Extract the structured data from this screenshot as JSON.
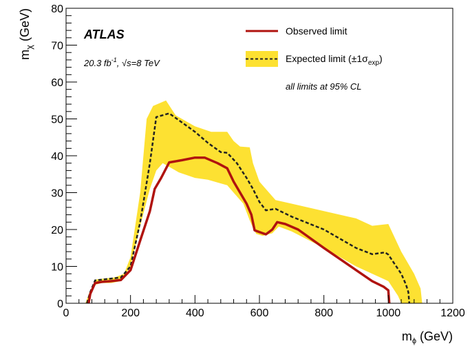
{
  "chart_data": {
    "type": "area",
    "xlabel_main": "m",
    "xlabel_sub": "ϕ",
    "xlabel_unit": " (GeV)",
    "ylabel_main": "m",
    "ylabel_sub": "χ",
    "ylabel_unit": " (GeV)",
    "xlim": [
      0,
      1200
    ],
    "ylim": [
      0,
      80
    ],
    "x_ticks": [
      0,
      200,
      400,
      600,
      800,
      1000,
      1200
    ],
    "y_ticks": [
      0,
      10,
      20,
      30,
      40,
      50,
      60,
      70,
      80
    ],
    "experiment": "ATLAS",
    "lumi_text": {
      "prefix": "20.3 fb",
      "sup": "-1",
      "mid": ", ",
      "sqrt": "√s",
      "suffix": "=8 TeV"
    },
    "note": "all limits at 95% CL",
    "legend_position": "top-right",
    "series": [
      {
        "name": "Observed limit",
        "style": "solid",
        "color": "#b0130f",
        "points": [
          [
            70,
            0
          ],
          [
            75,
            2.5
          ],
          [
            90,
            5.5
          ],
          [
            110,
            5.8
          ],
          [
            140,
            6
          ],
          [
            170,
            6.3
          ],
          [
            200,
            9
          ],
          [
            230,
            17
          ],
          [
            260,
            25
          ],
          [
            275,
            31
          ],
          [
            295,
            34
          ],
          [
            320,
            38.2
          ],
          [
            360,
            38.8
          ],
          [
            400,
            39.5
          ],
          [
            430,
            39.5
          ],
          [
            470,
            38
          ],
          [
            500,
            36.6
          ],
          [
            520,
            33
          ],
          [
            540,
            30
          ],
          [
            560,
            27
          ],
          [
            575,
            24
          ],
          [
            585,
            19.8
          ],
          [
            600,
            19.3
          ],
          [
            620,
            18.7
          ],
          [
            640,
            20
          ],
          [
            655,
            22
          ],
          [
            680,
            21.5
          ],
          [
            720,
            20
          ],
          [
            800,
            15
          ],
          [
            900,
            9
          ],
          [
            950,
            6
          ],
          [
            985,
            4.5
          ],
          [
            1000,
            3.5
          ],
          [
            1003,
            0
          ]
        ]
      },
      {
        "name": "Expected limit (±1σ_exp)",
        "legend_main": "Expected limit (±1",
        "legend_sigma": "σ",
        "legend_sub": "exp",
        "legend_close": ")",
        "style": "dashed",
        "color": "#222222",
        "band_color": "#fde132",
        "points": [
          [
            65,
            0
          ],
          [
            75,
            3
          ],
          [
            90,
            6.2
          ],
          [
            120,
            6.5
          ],
          [
            170,
            7
          ],
          [
            200,
            10
          ],
          [
            230,
            22
          ],
          [
            260,
            38
          ],
          [
            280,
            50.5
          ],
          [
            320,
            51.5
          ],
          [
            360,
            49
          ],
          [
            400,
            46.5
          ],
          [
            440,
            43.5
          ],
          [
            480,
            41
          ],
          [
            500,
            40.8
          ],
          [
            530,
            38
          ],
          [
            560,
            34
          ],
          [
            580,
            31
          ],
          [
            600,
            27.5
          ],
          [
            620,
            25.2
          ],
          [
            650,
            25.6
          ],
          [
            700,
            23.5
          ],
          [
            800,
            20
          ],
          [
            900,
            15
          ],
          [
            950,
            13.3
          ],
          [
            990,
            13.8
          ],
          [
            1000,
            13.2
          ],
          [
            1040,
            8
          ],
          [
            1055,
            5
          ],
          [
            1062,
            3
          ],
          [
            1065,
            0
          ]
        ],
        "band_upper": [
          [
            60,
            0
          ],
          [
            75,
            3.5
          ],
          [
            95,
            6.5
          ],
          [
            150,
            7
          ],
          [
            180,
            8
          ],
          [
            200,
            12.5
          ],
          [
            230,
            30
          ],
          [
            250,
            50
          ],
          [
            270,
            53.5
          ],
          [
            310,
            55
          ],
          [
            340,
            51
          ],
          [
            400,
            48
          ],
          [
            450,
            46.5
          ],
          [
            500,
            46.5
          ],
          [
            520,
            44
          ],
          [
            540,
            42.5
          ],
          [
            570,
            42.3
          ],
          [
            580,
            38
          ],
          [
            600,
            33
          ],
          [
            650,
            28
          ],
          [
            700,
            27
          ],
          [
            800,
            25
          ],
          [
            900,
            23
          ],
          [
            950,
            21
          ],
          [
            1000,
            21.5
          ],
          [
            1040,
            14
          ],
          [
            1080,
            8
          ],
          [
            1100,
            4
          ],
          [
            1105,
            0
          ]
        ],
        "band_lower": [
          [
            1040,
            0
          ],
          [
            1030,
            2
          ],
          [
            1000,
            6
          ],
          [
            900,
            10
          ],
          [
            800,
            15
          ],
          [
            700,
            19.5
          ],
          [
            660,
            20.8
          ],
          [
            640,
            19
          ],
          [
            610,
            18.3
          ],
          [
            590,
            18.8
          ],
          [
            580,
            20.5
          ],
          [
            570,
            22.5
          ],
          [
            550,
            27
          ],
          [
            520,
            30
          ],
          [
            500,
            32
          ],
          [
            480,
            32.5
          ],
          [
            440,
            33.5
          ],
          [
            400,
            34
          ],
          [
            350,
            35.5
          ],
          [
            300,
            38
          ],
          [
            280,
            36
          ],
          [
            260,
            31
          ],
          [
            230,
            21
          ],
          [
            200,
            10
          ],
          [
            170,
            6
          ],
          [
            140,
            5.5
          ],
          [
            110,
            5.5
          ],
          [
            90,
            5
          ],
          [
            80,
            3
          ],
          [
            68,
            0
          ]
        ]
      }
    ]
  }
}
